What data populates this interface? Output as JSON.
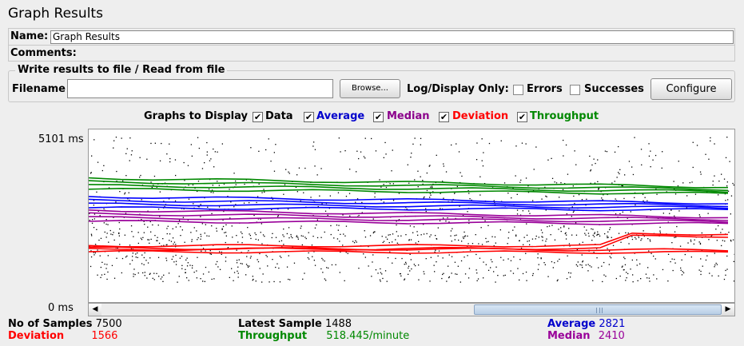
{
  "window": {
    "title": "Graph Results"
  },
  "name_row": {
    "label": "Name:",
    "value": "Graph Results"
  },
  "comments_row": {
    "label": "Comments:"
  },
  "file_panel": {
    "legend": "Write results to file / Read from file",
    "filename_label": "Filename",
    "filename_value": "",
    "browse_label": "Browse...",
    "log_display_label": "Log/Display Only:",
    "errors_label": "Errors",
    "errors_checked": false,
    "successes_label": "Successes",
    "successes_checked": false,
    "configure_label": "Configure"
  },
  "graphs_to_display": {
    "label": "Graphs to Display",
    "options": [
      {
        "label": "Data",
        "checked": true,
        "color": "#000000"
      },
      {
        "label": "Average",
        "checked": true,
        "color": "#0000cc"
      },
      {
        "label": "Median",
        "checked": true,
        "color": "#8b008b"
      },
      {
        "label": "Deviation",
        "checked": true,
        "color": "#ff0000"
      },
      {
        "label": "Throughput",
        "checked": true,
        "color": "#008800"
      }
    ],
    "check_glyph": "✔"
  },
  "axis": {
    "y_max_label": "5101  ms",
    "y_min_label": "0  ms"
  },
  "colors": {
    "data": "#000000",
    "average": "#0000ff",
    "median": "#990099",
    "deviation": "#ff0000",
    "throughput": "#008800"
  },
  "chart_data": {
    "type": "line",
    "ylim": [
      0,
      5101
    ],
    "y_unit": "ms",
    "series": [
      {
        "name": "Throughput",
        "color": "#008800",
        "levels": [
          3500,
          3400,
          3350,
          3300
        ]
      },
      {
        "name": "Average",
        "color": "#0000ff",
        "levels": [
          2950,
          2900,
          2850,
          2821
        ]
      },
      {
        "name": "Median",
        "color": "#990099",
        "levels": [
          2550,
          2500,
          2450,
          2410
        ]
      },
      {
        "name": "Deviation",
        "color": "#ff0000",
        "levels": [
          1650,
          1600,
          1560,
          1566
        ]
      }
    ]
  },
  "stats": {
    "samples_label": "No of Samples",
    "samples_value": "7500",
    "deviation_label": "Deviation",
    "deviation_value": "1566",
    "latest_label": "Latest Sample",
    "latest_value": "1488",
    "throughput_label": "Throughput",
    "throughput_value": "518.445/minute",
    "average_label": "Average",
    "average_value": "2821",
    "median_label": "Median",
    "median_value": "2410"
  }
}
